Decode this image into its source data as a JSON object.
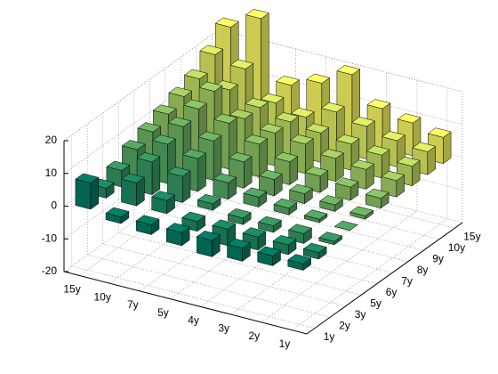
{
  "chart_data": {
    "type": "bar3",
    "categories": [
      "15y",
      "10y",
      "7y",
      "5y",
      "4y",
      "3y",
      "2y",
      "1y"
    ],
    "series": [
      {
        "name": "1y",
        "color": "#008066",
        "values": [
          8,
          -2,
          -3,
          -4,
          -5,
          -4,
          -3,
          -2
        ]
      },
      {
        "name": "2y",
        "color": "#1c8e66",
        "values": [
          3,
          7,
          4,
          -3,
          -5,
          -4,
          -3,
          -2
        ]
      },
      {
        "name": "3y",
        "color": "#399c66",
        "values": [
          5,
          10,
          8,
          2,
          -2,
          -2,
          -3,
          -1
        ]
      },
      {
        "name": "5y",
        "color": "#55aa66",
        "values": [
          8,
          12,
          10,
          5,
          3,
          2,
          1,
          0
        ]
      },
      {
        "name": "6y",
        "color": "#71b866",
        "values": [
          10,
          14,
          12,
          8,
          5,
          3,
          2,
          1
        ]
      },
      {
        "name": "7y",
        "color": "#8ec766",
        "values": [
          12,
          16,
          14,
          10,
          7,
          5,
          4,
          3
        ]
      },
      {
        "name": "8y",
        "color": "#aad566",
        "values": [
          14,
          18,
          12,
          10,
          9,
          7,
          6,
          5
        ]
      },
      {
        "name": "9y",
        "color": "#c6e366",
        "values": [
          16,
          15,
          12,
          10,
          9,
          8,
          7,
          6
        ]
      },
      {
        "name": "10y",
        "color": "#e3f166",
        "values": [
          20,
          18,
          10,
          8,
          12,
          10,
          8,
          7
        ]
      },
      {
        "name": "15y",
        "color": "#ffff66",
        "values": [
          25,
          30,
          12,
          15,
          20,
          12,
          10,
          8
        ]
      }
    ],
    "zlim": [
      -20,
      20
    ],
    "zticks": [
      -20,
      -10,
      0,
      10,
      20
    ],
    "grid": true
  }
}
